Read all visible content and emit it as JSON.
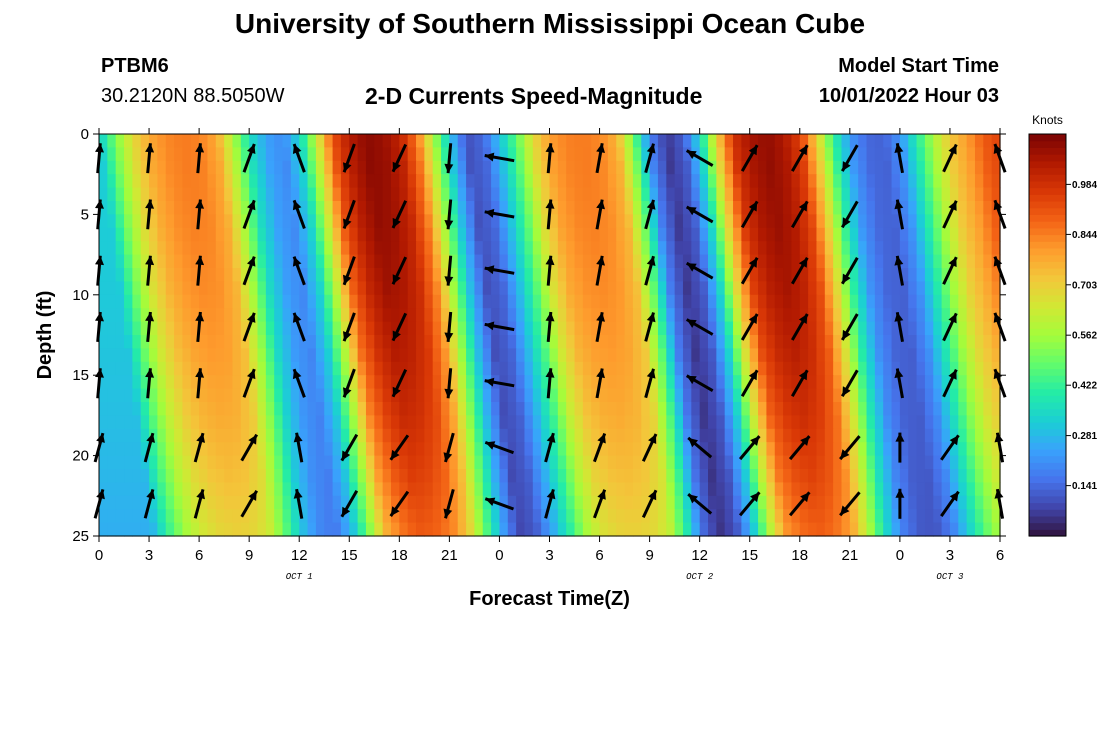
{
  "header": {
    "title": "University of Southern Mississippi Ocean Cube",
    "station_id": "PTBM6",
    "coords": "30.2120N  88.5050W",
    "subtitle": "2-D Currents Speed-Magnitude",
    "start_label": "Model Start Time",
    "start_value": "10/01/2022 Hour 03"
  },
  "footer": {
    "title": "University of Southern Mississippi Ocean Cube"
  },
  "chart_data": {
    "type": "heatmap",
    "title": "2-D Currents Speed-Magnitude",
    "xlabel": "Forecast Time(Z)",
    "ylabel": "Depth (ft)",
    "x_hours_range": [
      0,
      54
    ],
    "x_tick_hours": [
      0,
      3,
      6,
      9,
      12,
      15,
      18,
      21,
      24,
      27,
      30,
      33,
      36,
      39,
      42,
      45,
      48,
      51,
      54
    ],
    "x_tick_labels": [
      "0",
      "3",
      "6",
      "9",
      "12",
      "15",
      "18",
      "21",
      "0",
      "3",
      "6",
      "9",
      "12",
      "15",
      "18",
      "21",
      "0",
      "3",
      "6"
    ],
    "date_labels": [
      {
        "hour": 12,
        "text": "OCT 1"
      },
      {
        "hour": 36,
        "text": "OCT 2"
      },
      {
        "hour": 51,
        "text": "OCT 3"
      }
    ],
    "y_range": [
      0,
      25
    ],
    "y_inverted": true,
    "y_tick_values": [
      0,
      5,
      10,
      15,
      20,
      25
    ],
    "y_tick_labels": [
      "0",
      "5",
      "10",
      "15",
      "20",
      "25"
    ],
    "colorbar": {
      "label": "Knots",
      "range": [
        0,
        1.125
      ],
      "tick_values": [
        0.141,
        0.281,
        0.422,
        0.562,
        0.703,
        0.844,
        0.984
      ],
      "tick_labels": [
        "0.141",
        "0.281",
        "0.422",
        "0.562",
        "0.703",
        "0.844",
        "0.984"
      ],
      "colors": [
        "#30123b",
        "#4145ab",
        "#4675ed",
        "#39a2fc",
        "#1bcfd4",
        "#24eca6",
        "#61fc6c",
        "#a4fc3b",
        "#d1e834",
        "#f3c63a",
        "#fe9b2d",
        "#f36315",
        "#d93806",
        "#b11901",
        "#7a0403"
      ]
    },
    "speed_knots_by_hour": [
      [
        0,
        0.32
      ],
      [
        1,
        0.52
      ],
      [
        2,
        0.68
      ],
      [
        3,
        0.78
      ],
      [
        4,
        0.83
      ],
      [
        5,
        0.85
      ],
      [
        6,
        0.84
      ],
      [
        7,
        0.78
      ],
      [
        8,
        0.58
      ],
      [
        9,
        0.36
      ],
      [
        10,
        0.24
      ],
      [
        11,
        0.2
      ],
      [
        12,
        0.34
      ],
      [
        13,
        0.62
      ],
      [
        14,
        0.92
      ],
      [
        15,
        1.04
      ],
      [
        16,
        1.1
      ],
      [
        17,
        1.08
      ],
      [
        18,
        1.02
      ],
      [
        19,
        0.86
      ],
      [
        20,
        0.58
      ],
      [
        21,
        0.3
      ],
      [
        22,
        0.1
      ],
      [
        23,
        0.14
      ],
      [
        24,
        0.3
      ],
      [
        25,
        0.48
      ],
      [
        26,
        0.68
      ],
      [
        27,
        0.8
      ],
      [
        28,
        0.84
      ],
      [
        29,
        0.85
      ],
      [
        30,
        0.83
      ],
      [
        31,
        0.76
      ],
      [
        32,
        0.5
      ],
      [
        33,
        0.18
      ],
      [
        34,
        0.06
      ],
      [
        35,
        0.12
      ],
      [
        36,
        0.35
      ],
      [
        37,
        0.7
      ],
      [
        38,
        0.98
      ],
      [
        39,
        1.06
      ],
      [
        40,
        1.09
      ],
      [
        41,
        1.05
      ],
      [
        42,
        0.95
      ],
      [
        43,
        0.7
      ],
      [
        44,
        0.42
      ],
      [
        45,
        0.22
      ],
      [
        46,
        0.14
      ],
      [
        47,
        0.13
      ],
      [
        48,
        0.22
      ],
      [
        49,
        0.4
      ],
      [
        50,
        0.58
      ],
      [
        51,
        0.72
      ],
      [
        52,
        0.8
      ],
      [
        53,
        0.9
      ],
      [
        54,
        0.95
      ]
    ],
    "arrow_hours": [
      0,
      3,
      6,
      9,
      12,
      15,
      18,
      21,
      24,
      27,
      30,
      33,
      36,
      39,
      42,
      45,
      48,
      51,
      54
    ],
    "arrow_depths_ft": [
      1.5,
      5,
      8.5,
      12,
      15.5,
      19.5,
      23
    ],
    "arrow_direction_deg_by_hour": [
      5,
      5,
      5,
      20,
      340,
      200,
      205,
      185,
      280,
      5,
      10,
      15,
      300,
      30,
      30,
      210,
      350,
      25,
      340
    ]
  }
}
